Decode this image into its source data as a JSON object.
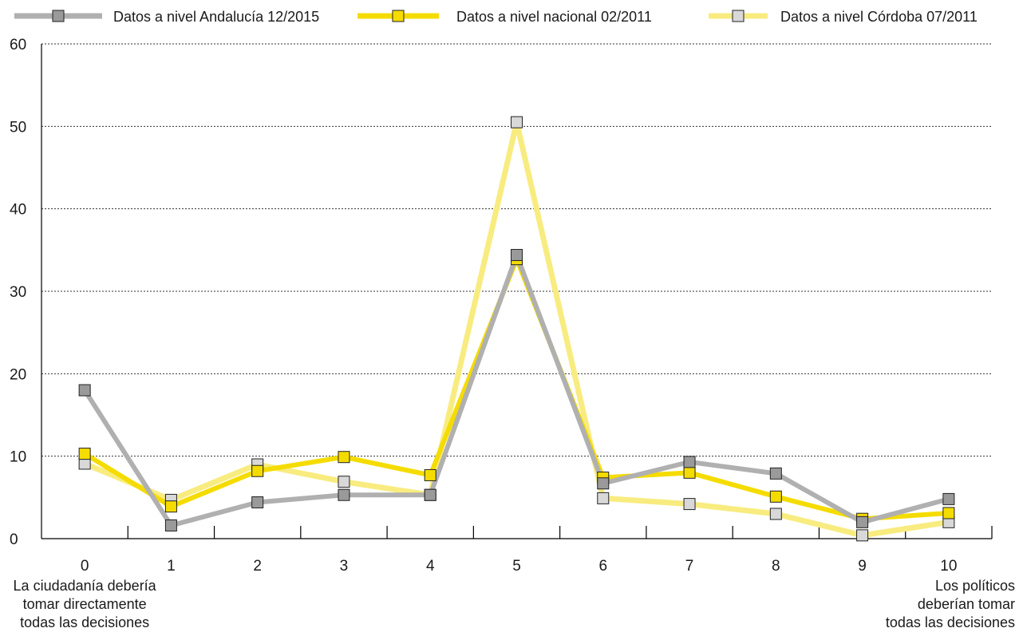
{
  "chart_data": {
    "type": "line",
    "categories": [
      "0",
      "1",
      "2",
      "3",
      "4",
      "5",
      "6",
      "7",
      "8",
      "9",
      "10"
    ],
    "series": [
      {
        "name": "Datos a nivel Andalucía 12/2015",
        "values": [
          18.0,
          1.6,
          4.4,
          5.3,
          5.3,
          34.4,
          6.7,
          9.3,
          7.9,
          2.0,
          4.8
        ],
        "line_color": "#b0b0b0",
        "marker_color": "#9a9a9a"
      },
      {
        "name": "Datos a nivel nacional 02/2011",
        "values": [
          10.3,
          3.9,
          8.2,
          9.9,
          7.7,
          33.9,
          7.4,
          8.0,
          5.1,
          2.4,
          3.1
        ],
        "line_color": "#f5dc00",
        "marker_color": "#f5dc00"
      },
      {
        "name": "Datos a nivel Córdoba 07/2011",
        "values": [
          9.1,
          4.7,
          9.0,
          6.9,
          5.3,
          50.5,
          4.9,
          4.2,
          3.0,
          0.4,
          2.0
        ],
        "line_color": "#f8ec80",
        "marker_color": "#d8d8d8"
      }
    ],
    "y_ticks": [
      "0",
      "10",
      "20",
      "30",
      "40",
      "50",
      "60"
    ],
    "ylim": [
      0,
      60
    ],
    "grid": true,
    "legend_position": "top",
    "endpoint_notes": {
      "left": [
        "La ciudadanía debería",
        "tomar directamente",
        "todas las decisiones"
      ],
      "right": [
        "Los políticos",
        "deberían tomar",
        "todas las decisiones"
      ]
    }
  }
}
